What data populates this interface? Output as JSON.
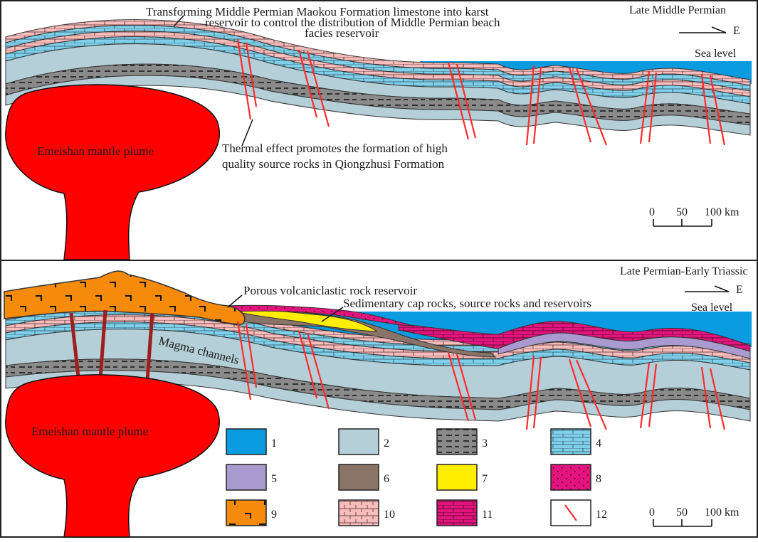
{
  "top_panel": {
    "period": "Late Middle Permian",
    "direction": "E",
    "sea_level": "Sea level",
    "karst_note": [
      "Transforming Middle Permian Maokou Formation limestone into karst",
      "reservoir to control the distribution of Middle Permian beach",
      "facies reservoir"
    ],
    "thermal_note": [
      "Thermal effect promotes the formation of high",
      "quality source rocks in Qiongzhusi Formation"
    ],
    "plume": "Emeishan mantle plume",
    "scale": [
      "0",
      "50",
      "100 km"
    ]
  },
  "bottom_panel": {
    "period": "Late Permian-Early Triassic",
    "direction": "E",
    "sea_level": "Sea level",
    "volcaniclastic": "Porous volcaniclastic rock reservoir",
    "sedimentary": "Sedimentary cap rocks, source rocks and reservoirs",
    "magma": "Magma channels",
    "plume": "Emeishan mantle plume",
    "scale": [
      "0",
      "50",
      "100 km"
    ]
  },
  "legend": [
    {
      "id": "1",
      "fill": "#0b9be0"
    },
    {
      "id": "2",
      "fill": "#b5cfd8"
    },
    {
      "id": "3",
      "fill": "#8a8a8a"
    },
    {
      "id": "4",
      "fill": "#7fd0ea"
    },
    {
      "id": "5",
      "fill": "#a99bcf"
    },
    {
      "id": "6",
      "fill": "#8a7468"
    },
    {
      "id": "7",
      "fill": "#ffee00"
    },
    {
      "id": "8",
      "fill": "#e3147e"
    },
    {
      "id": "9",
      "fill": "#f58a0b"
    },
    {
      "id": "10",
      "fill": "#f7bcbc"
    },
    {
      "id": "11",
      "fill": "#e3147e"
    },
    {
      "id": "12",
      "fill": "#ffffff"
    }
  ],
  "colors": {
    "sea": "#0b9be0",
    "mudstone": "#b5cfd8",
    "shale": "#8a8a8a",
    "limestone": "#7fd0ea",
    "pink_limestone": "#f7bcbc",
    "plume": "#ff0000",
    "basalt": "#f58a0b",
    "fault": "#ff2a2a"
  }
}
